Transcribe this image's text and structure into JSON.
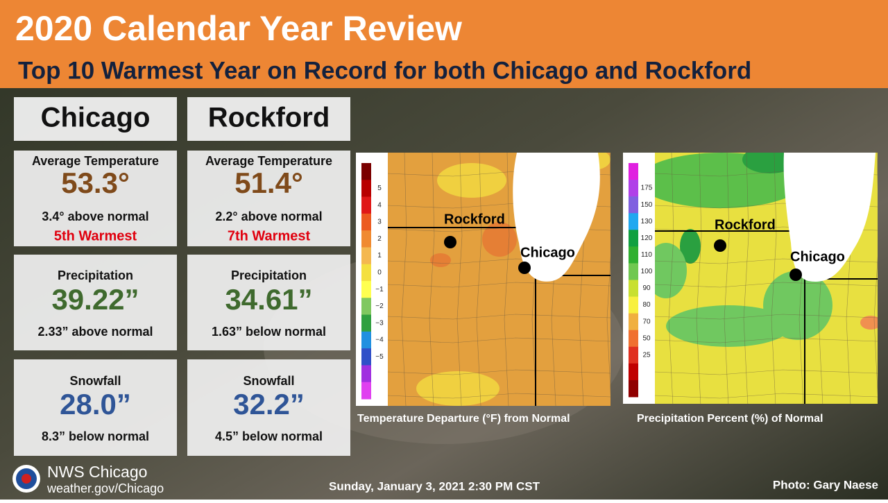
{
  "header": {
    "title": "2020 Calendar Year Review",
    "subtitle": "Top 10 Warmest Year on Record for both Chicago and Rockford"
  },
  "cities": [
    {
      "name": "Chicago",
      "temperature": {
        "label": "Average Temperature",
        "value": "53.3°",
        "departure": "3.4° above normal",
        "rank": "5th Warmest"
      },
      "precipitation": {
        "label": "Precipitation",
        "value": "39.22”",
        "departure": "2.33” above normal"
      },
      "snowfall": {
        "label": "Snowfall",
        "value": "28.0”",
        "departure": "8.3” below normal"
      }
    },
    {
      "name": "Rockford",
      "temperature": {
        "label": "Average Temperature",
        "value": "51.4°",
        "departure": "2.2° above normal",
        "rank": "7th Warmest"
      },
      "precipitation": {
        "label": "Precipitation",
        "value": "34.61”",
        "departure": "1.63” below normal"
      },
      "snowfall": {
        "label": "Snowfall",
        "value": "32.2”",
        "departure": "4.5” below normal"
      }
    }
  ],
  "maps": [
    {
      "caption": "Temperature Departure (°F)  from Normal",
      "legend_ticks": [
        "5",
        "4",
        "3",
        "2",
        "1",
        "0",
        "−1",
        "−2",
        "−3",
        "−4",
        "−5"
      ],
      "cities": [
        "Rockford",
        "Chicago"
      ]
    },
    {
      "caption": "Precipitation Percent (%) of Normal",
      "legend_ticks": [
        "175",
        "150",
        "130",
        "120",
        "110",
        "100",
        "90",
        "80",
        "70",
        "50",
        "25"
      ],
      "cities": [
        "Rockford",
        "Chicago"
      ]
    }
  ],
  "footer": {
    "office": "NWS Chicago",
    "website": "weather.gov/Chicago",
    "date": "Sunday, January 3, 2021 2:30 PM CST",
    "credit": "Photo: Gary Naese"
  }
}
